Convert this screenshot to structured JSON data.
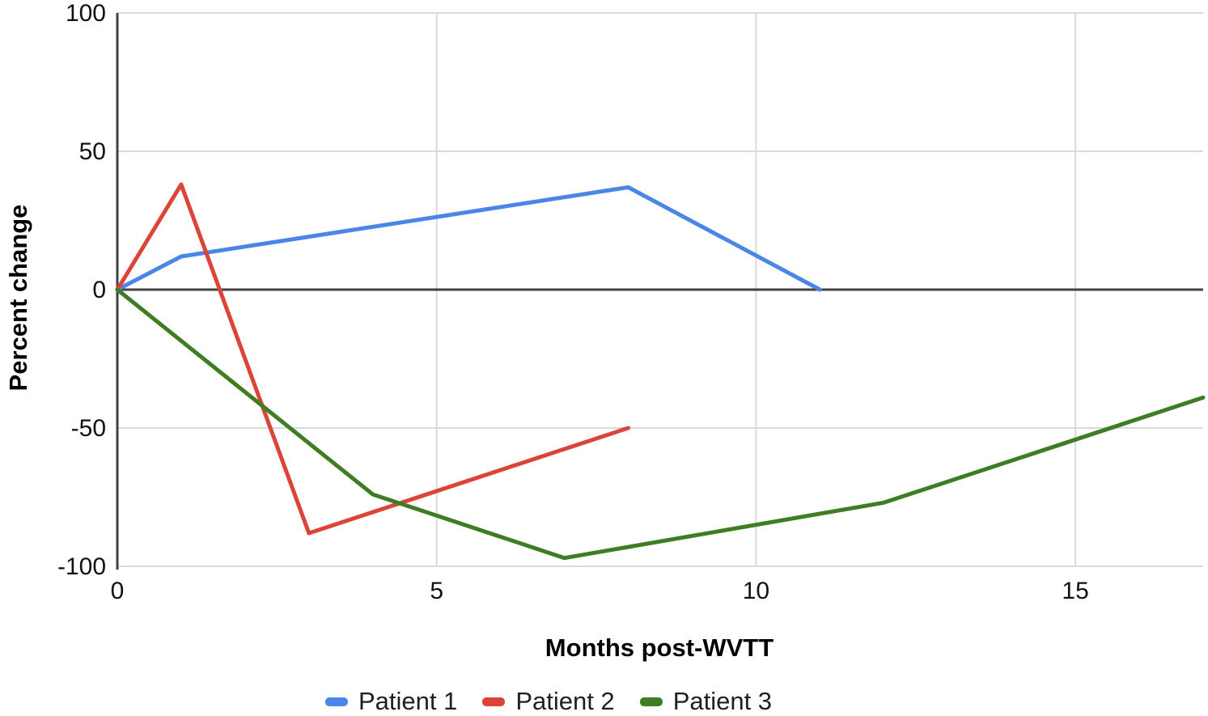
{
  "chart_data": {
    "type": "line",
    "title": "",
    "xlabel": "Months post-WVTT",
    "ylabel": "Percent change",
    "xlim": [
      0,
      17
    ],
    "ylim": [
      -100,
      100
    ],
    "xticks": [
      0,
      5,
      10,
      15
    ],
    "yticks": [
      100,
      50,
      0,
      -50,
      -100
    ],
    "grid": true,
    "legend_position": "bottom",
    "zero_baseline": true,
    "colors": {
      "gridline": "#dadada",
      "axis": "#424242",
      "tick_label": "#111111"
    },
    "series": [
      {
        "name": "Patient 1",
        "color": "#4a86e8",
        "points": [
          [
            0,
            0
          ],
          [
            1,
            12
          ],
          [
            8,
            37
          ],
          [
            11,
            0
          ]
        ]
      },
      {
        "name": "Patient 2",
        "color": "#db4437",
        "points": [
          [
            0,
            0
          ],
          [
            1,
            38
          ],
          [
            3,
            -88
          ],
          [
            8,
            -50
          ]
        ]
      },
      {
        "name": "Patient 3",
        "color": "#3e7d22",
        "points": [
          [
            0,
            0
          ],
          [
            4,
            -74
          ],
          [
            7,
            -97
          ],
          [
            12,
            -77
          ],
          [
            17,
            -39
          ]
        ]
      }
    ]
  }
}
